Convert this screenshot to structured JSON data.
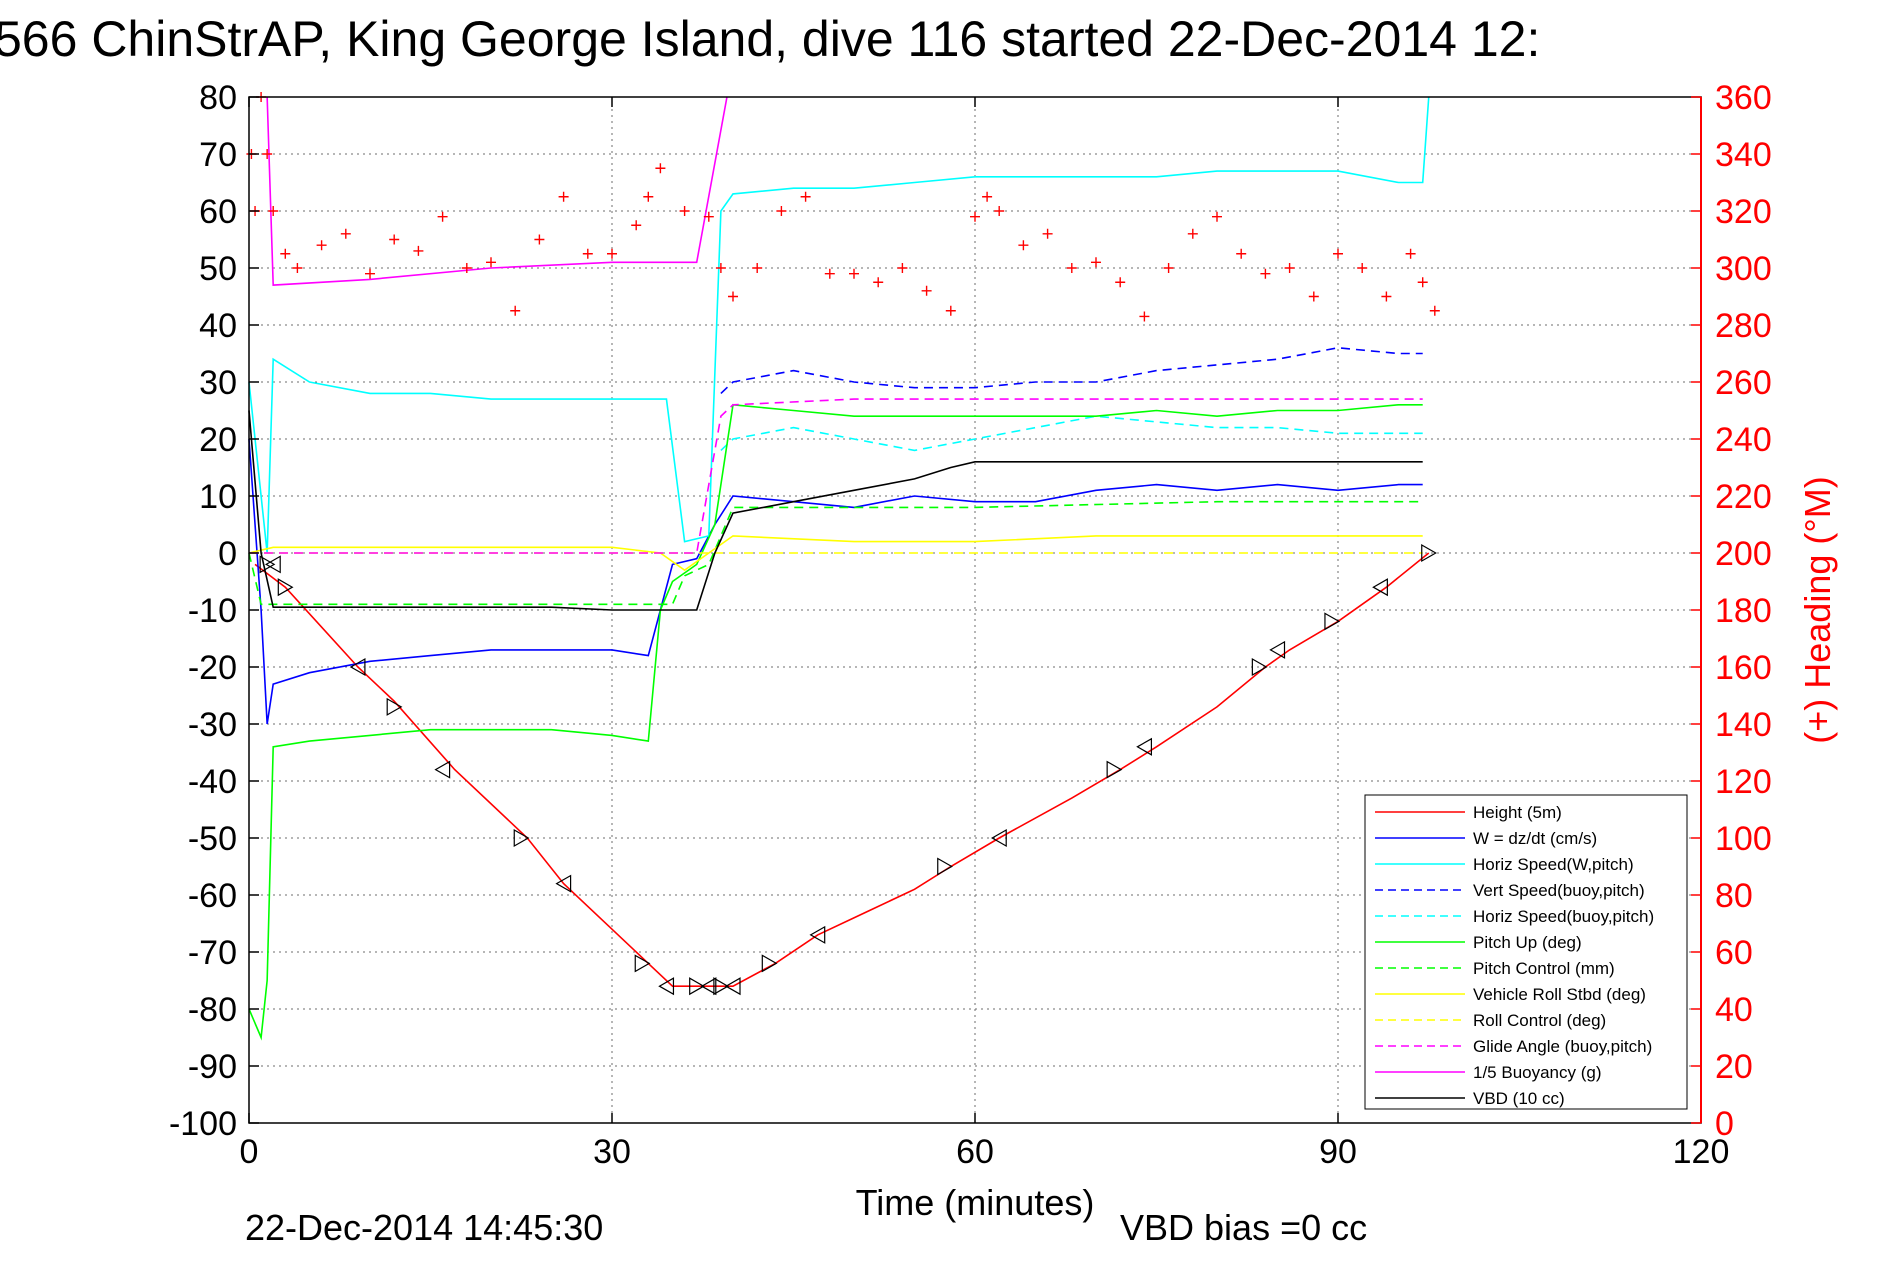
{
  "chart_data": {
    "type": "line",
    "title": "566 ChinStrAP, King George Island, dive 116 started 22-Dec-2014 12:",
    "xlabel": "Time (minutes)",
    "ylabel": "",
    "y2label": "(+) Heading (°M)",
    "xlim": [
      0,
      120
    ],
    "ylim": [
      -100,
      80
    ],
    "y2lim": [
      0,
      360
    ],
    "xticks": [
      0,
      30,
      60,
      90,
      120
    ],
    "yticks": [
      80,
      70,
      60,
      50,
      40,
      30,
      20,
      10,
      0,
      -10,
      -20,
      -30,
      -40,
      -50,
      -60,
      -70,
      -80,
      -90,
      -100
    ],
    "y2ticks": [
      360,
      340,
      320,
      300,
      280,
      260,
      240,
      220,
      200,
      180,
      160,
      140,
      120,
      100,
      80,
      60,
      40,
      20,
      0
    ],
    "grid": true,
    "legend_position": "bottom-right",
    "footer_date": "22-Dec-2014 14:45:30",
    "footer_note": "VBD bias =0 cc",
    "series": [
      {
        "name": "Height (5m)",
        "color": "#ff0000",
        "dash": "solid",
        "x": [
          0.5,
          3,
          9,
          12,
          17,
          23,
          26,
          33,
          35,
          37.5,
          40,
          43.5,
          47,
          51,
          55,
          58,
          62,
          68,
          72,
          75,
          80,
          84,
          86,
          90,
          94,
          97.5
        ],
        "y": [
          -2,
          -6,
          -20,
          -26,
          -38,
          -50,
          -58,
          -72,
          -76,
          -76,
          -76,
          -72,
          -67,
          -63,
          -59,
          -55,
          -50,
          -43,
          -38,
          -34,
          -27,
          -20,
          -17,
          -12,
          -6,
          0
        ]
      },
      {
        "name": "W = dz/dt (cm/s)",
        "color": "#0000ff",
        "dash": "solid",
        "x": [
          0,
          1,
          1.5,
          2,
          5,
          10,
          15,
          20,
          25,
          30,
          33,
          34,
          35,
          37,
          38.5,
          40,
          45,
          50,
          55,
          60,
          65,
          70,
          75,
          80,
          85,
          90,
          95,
          97
        ],
        "y": [
          20,
          -10,
          -30,
          -23,
          -21,
          -19,
          -18,
          -17,
          -17,
          -17,
          -18,
          -10,
          -2,
          -1,
          5,
          10,
          9,
          8,
          10,
          9,
          9,
          11,
          12,
          11,
          12,
          11,
          12,
          12
        ]
      },
      {
        "name": "Horiz Speed(W,pitch)",
        "color": "#00ffff",
        "dash": "solid",
        "x": [
          0,
          1.5,
          2,
          5,
          10,
          15,
          20,
          25,
          30,
          33,
          34.5,
          36,
          38,
          39,
          40,
          45,
          50,
          55,
          60,
          65,
          70,
          75,
          80,
          85,
          90,
          95,
          97,
          97.5
        ],
        "y": [
          30,
          0,
          34,
          30,
          28,
          28,
          27,
          27,
          27,
          27,
          27,
          2,
          3,
          60,
          63,
          64,
          64,
          65,
          66,
          66,
          66,
          66,
          67,
          67,
          67,
          65,
          65,
          80
        ]
      },
      {
        "name": "Vert Speed(buoy,pitch)",
        "color": "#0000ff",
        "dash": "dashed",
        "x": [
          39,
          40,
          45,
          50,
          55,
          60,
          65,
          70,
          75,
          80,
          85,
          90,
          95,
          97
        ],
        "y": [
          28,
          30,
          32,
          30,
          29,
          29,
          30,
          30,
          32,
          33,
          34,
          36,
          35,
          35
        ]
      },
      {
        "name": "Horiz Speed(buoy,pitch)",
        "color": "#00ffff",
        "dash": "dashed",
        "x": [
          39,
          40,
          45,
          50,
          55,
          60,
          65,
          70,
          75,
          80,
          85,
          90,
          95,
          97
        ],
        "y": [
          18,
          20,
          22,
          20,
          18,
          20,
          22,
          24,
          23,
          22,
          22,
          21,
          21,
          21
        ]
      },
      {
        "name": "Pitch Up (deg)",
        "color": "#00ff00",
        "dash": "solid",
        "x": [
          0,
          1,
          1.5,
          2,
          5,
          10,
          15,
          20,
          25,
          30,
          33,
          34,
          35,
          37,
          38.5,
          40,
          45,
          50,
          55,
          60,
          65,
          70,
          75,
          80,
          85,
          90,
          95,
          97
        ],
        "y": [
          -80,
          -85,
          -75,
          -34,
          -33,
          -32,
          -31,
          -31,
          -31,
          -32,
          -33,
          -10,
          -5,
          -2,
          5,
          26,
          25,
          24,
          24,
          24,
          24,
          24,
          25,
          24,
          25,
          25,
          26,
          26
        ]
      },
      {
        "name": "Pitch Control (mm)",
        "color": "#00ff00",
        "dash": "dashed",
        "x": [
          0,
          1,
          2,
          20,
          35,
          36,
          38,
          40,
          60,
          80,
          97
        ],
        "y": [
          0,
          -9,
          -9,
          -9,
          -9,
          -4,
          -2,
          8,
          8,
          9,
          9
        ]
      },
      {
        "name": "Vehicle Roll Stbd (deg)",
        "color": "#ffff00",
        "dash": "solid",
        "x": [
          0,
          2,
          10,
          20,
          30,
          34,
          36,
          38,
          40,
          50,
          60,
          70,
          80,
          90,
          97
        ],
        "y": [
          0,
          1,
          1,
          1,
          1,
          0,
          -3,
          0,
          3,
          2,
          2,
          3,
          3,
          3,
          3
        ]
      },
      {
        "name": "Roll Control (deg)",
        "color": "#ffff00",
        "dash": "dashed",
        "x": [
          0,
          2,
          10,
          20,
          30,
          35,
          38,
          40,
          50,
          60,
          70,
          80,
          90,
          97
        ],
        "y": [
          0,
          0,
          0,
          0,
          0,
          0,
          0,
          0,
          0,
          0,
          0,
          0,
          0,
          0
        ]
      },
      {
        "name": "Glide Angle (buoy,pitch)",
        "color": "#ff00ff",
        "dash": "dashed",
        "x": [
          0,
          37,
          39,
          40,
          50,
          60,
          70,
          80,
          90,
          97
        ],
        "y": [
          0,
          0,
          24,
          26,
          27,
          27,
          27,
          27,
          27,
          27
        ]
      },
      {
        "name": "1/5 Buoyancy (g)",
        "color": "#ff00ff",
        "dash": "solid",
        "x": [
          1.5,
          2,
          10,
          20,
          30,
          37,
          39.5
        ],
        "y": [
          80,
          47,
          48,
          50,
          51,
          51,
          80
        ]
      },
      {
        "name": "VBD (10 cc)",
        "color": "#000000",
        "dash": "solid",
        "x": [
          0,
          1,
          2,
          10,
          20,
          25,
          30,
          35,
          37,
          38.5,
          40,
          45,
          50,
          55,
          58,
          60,
          70,
          80,
          90,
          97
        ],
        "y": [
          25,
          0,
          -9.5,
          -9.5,
          -9.5,
          -9.5,
          -10,
          -10,
          -10,
          0,
          7,
          9,
          11,
          13,
          15,
          16,
          16,
          16,
          16,
          16
        ]
      }
    ],
    "heading_points": {
      "axis": "right",
      "marker": "+",
      "color": "#ff0000",
      "x": [
        0.2,
        0.5,
        1,
        1.5,
        2,
        3,
        4,
        6,
        8,
        10,
        12,
        14,
        16,
        18,
        20,
        22,
        24,
        26,
        28,
        30,
        32,
        33,
        34,
        36,
        38,
        39,
        40,
        42,
        44,
        46,
        48,
        50,
        52,
        54,
        56,
        58,
        60,
        61,
        62,
        64,
        66,
        68,
        70,
        72,
        74,
        76,
        78,
        80,
        82,
        84,
        86,
        88,
        90,
        92,
        94,
        96,
        97,
        98
      ],
      "y": [
        340,
        320,
        360,
        340,
        320,
        305,
        300,
        308,
        312,
        298,
        310,
        306,
        318,
        300,
        302,
        285,
        310,
        325,
        305,
        305,
        315,
        325,
        335,
        320,
        318,
        300,
        290,
        300,
        320,
        325,
        298,
        298,
        295,
        300,
        292,
        285,
        318,
        325,
        320,
        308,
        312,
        300,
        302,
        295,
        283,
        300,
        312,
        318,
        305,
        298,
        300,
        290,
        305,
        300,
        290,
        305,
        295,
        285
      ]
    },
    "marker_points": {
      "marker": "triangle",
      "color": "#000000",
      "x": [
        1.5,
        2,
        3,
        9,
        12,
        16,
        22.5,
        26,
        32.5,
        34.5,
        37,
        38,
        39,
        40,
        43,
        47,
        57.5,
        62,
        71.5,
        74,
        83.5,
        85,
        89.5,
        93.5,
        97.5
      ],
      "y": [
        -2,
        -2,
        -6,
        -20,
        -27,
        -38,
        -50,
        -58,
        -72,
        -76,
        -76,
        -76,
        -76,
        -76,
        -72,
        -67,
        -55,
        -50,
        -38,
        -34,
        -20,
        -17,
        -12,
        -6,
        0
      ]
    }
  }
}
